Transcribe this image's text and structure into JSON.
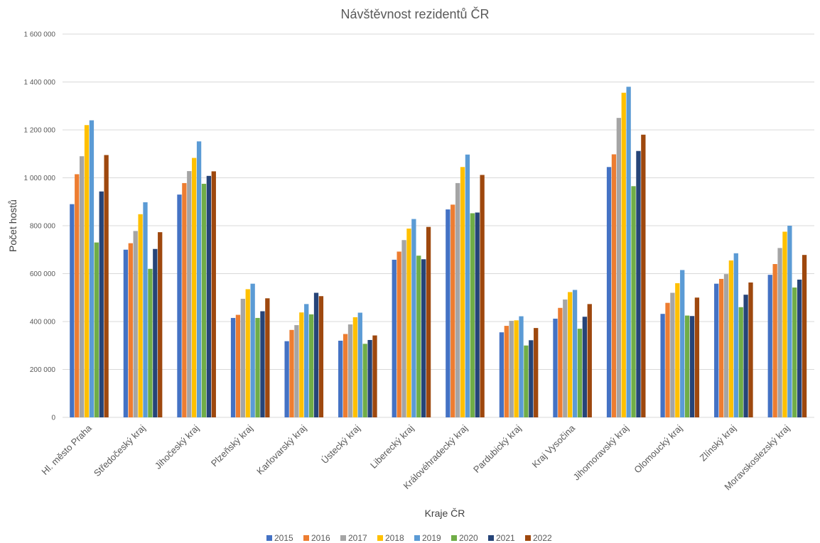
{
  "chart_data": {
    "type": "bar",
    "title": "Návštěvnost rezidentů ČR",
    "xlabel": "Kraje ČR",
    "ylabel": "Počet hostů",
    "ylim": [
      0,
      1600000
    ],
    "yticks": [
      0,
      200000,
      400000,
      600000,
      800000,
      1000000,
      1200000,
      1400000,
      1600000
    ],
    "ytick_labels": [
      "0",
      "200 000",
      "400 000",
      "600 000",
      "800 000",
      "1 000 000",
      "1 200 000",
      "1 400 000",
      "1 600 000"
    ],
    "grid": true,
    "legend_position": "bottom",
    "categories": [
      "Hl. město Praha",
      "Středočeský kraj",
      "Jihočeský kraj",
      "Plzeňský kraj",
      "Karlovarský kraj",
      "Ústecký kraj",
      "Liberecký kraj",
      "Královéhradecký kraj",
      "Pardubický kraj",
      "Kraj Vysočina",
      "Jihomoravský kraj",
      "Olomoucký kraj",
      "Zlínský kraj",
      "Moravskoslezský kraj"
    ],
    "series": [
      {
        "name": "2015",
        "color": "#4472c4",
        "values": [
          890000,
          700000,
          930000,
          415000,
          318000,
          320000,
          658000,
          868000,
          355000,
          412000,
          1045000,
          432000,
          558000,
          595000
        ]
      },
      {
        "name": "2016",
        "color": "#ed7d31",
        "values": [
          1015000,
          727000,
          978000,
          428000,
          365000,
          348000,
          692000,
          888000,
          382000,
          457000,
          1098000,
          478000,
          578000,
          640000
        ]
      },
      {
        "name": "2017",
        "color": "#a5a5a5",
        "values": [
          1090000,
          778000,
          1028000,
          495000,
          385000,
          388000,
          740000,
          978000,
          403000,
          492000,
          1250000,
          520000,
          598000,
          707000
        ]
      },
      {
        "name": "2018",
        "color": "#ffc000",
        "values": [
          1220000,
          848000,
          1083000,
          535000,
          438000,
          418000,
          788000,
          1045000,
          405000,
          523000,
          1355000,
          560000,
          655000,
          775000
        ]
      },
      {
        "name": "2019",
        "color": "#5b9bd5",
        "values": [
          1240000,
          898000,
          1152000,
          558000,
          473000,
          437000,
          828000,
          1097000,
          422000,
          532000,
          1380000,
          615000,
          685000,
          800000
        ]
      },
      {
        "name": "2020",
        "color": "#70ad47",
        "values": [
          730000,
          620000,
          975000,
          415000,
          430000,
          307000,
          675000,
          852000,
          300000,
          370000,
          965000,
          425000,
          460000,
          542000
        ]
      },
      {
        "name": "2021",
        "color": "#264478",
        "values": [
          943000,
          703000,
          1008000,
          443000,
          520000,
          323000,
          660000,
          855000,
          322000,
          420000,
          1112000,
          423000,
          512000,
          575000
        ]
      },
      {
        "name": "2022",
        "color": "#9e480e",
        "values": [
          1095000,
          773000,
          1027000,
          497000,
          506000,
          342000,
          795000,
          1012000,
          373000,
          473000,
          1180000,
          500000,
          563000,
          678000
        ]
      }
    ]
  }
}
